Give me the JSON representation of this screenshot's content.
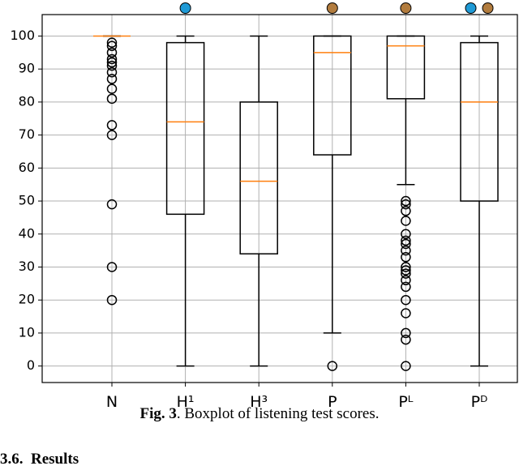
{
  "chart_data": {
    "type": "boxplot",
    "categories": [
      "N",
      "H¹",
      "H³",
      "P",
      "Pᴸ",
      "Pᴰ"
    ],
    "boxes": [
      {
        "whislo": 100,
        "q1": 100,
        "med": 100,
        "q3": 100,
        "whishi": 100,
        "fliers": [
          98,
          97,
          95,
          93,
          92,
          91,
          89,
          87,
          84,
          81,
          73,
          70,
          49,
          30,
          20
        ]
      },
      {
        "whislo": 0,
        "q1": 46,
        "med": 74,
        "q3": 98,
        "whishi": 100,
        "fliers": []
      },
      {
        "whislo": 0,
        "q1": 34,
        "med": 56,
        "q3": 80,
        "whishi": 100,
        "fliers": []
      },
      {
        "whislo": 10,
        "q1": 64,
        "med": 95,
        "q3": 100,
        "whishi": 100,
        "fliers": [
          0
        ]
      },
      {
        "whislo": 55,
        "q1": 81,
        "med": 97,
        "q3": 100,
        "whishi": 100,
        "fliers": [
          50,
          49,
          47,
          44,
          40,
          38,
          37,
          35,
          33,
          30,
          29,
          28,
          26,
          24,
          20,
          16,
          10,
          8,
          0
        ]
      },
      {
        "whislo": 0,
        "q1": 50,
        "med": 80,
        "q3": 98,
        "whishi": 100,
        "fliers": []
      }
    ],
    "markers": [
      [],
      [
        "#1f9ad6"
      ],
      [],
      [
        "#b27c3e"
      ],
      [
        "#b27c3e"
      ],
      [
        "#1f9ad6",
        "#b27c3e"
      ]
    ],
    "median_color": "#ff7f0e",
    "ylim": [
      -5,
      106.5
    ],
    "yticks": [
      0,
      10,
      20,
      30,
      40,
      50,
      60,
      70,
      80,
      90,
      100
    ],
    "grid": true
  },
  "caption": {
    "label": "Fig. 3",
    "text": ". Boxplot of listening test scores."
  },
  "section_heading": "3.6.  Results"
}
